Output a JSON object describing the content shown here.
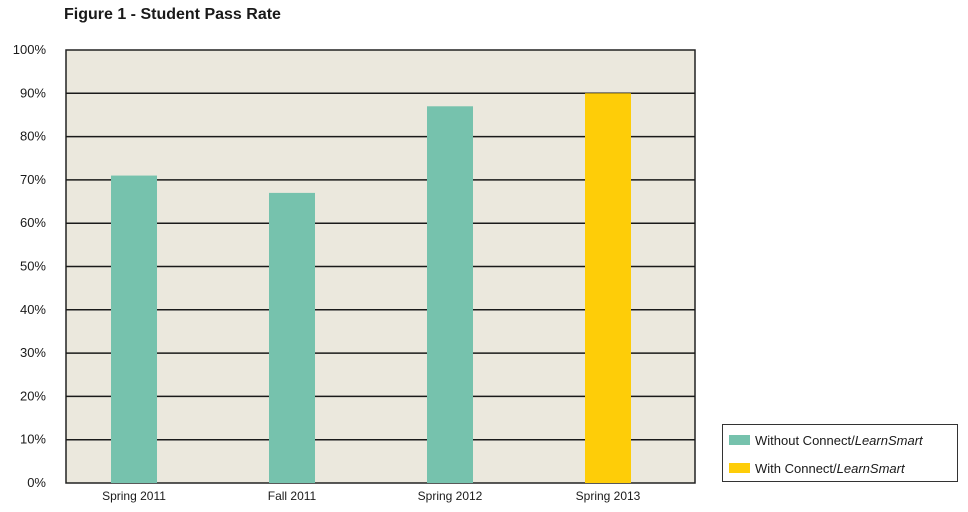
{
  "chart_data": {
    "type": "bar",
    "title": "Figure 1 - Student Pass Rate",
    "categories": [
      "Spring 2011",
      "Fall 2011",
      "Spring 2012",
      "Spring 2013"
    ],
    "values": [
      71,
      67,
      87,
      90
    ],
    "ylim": [
      0,
      100
    ],
    "yticks": [
      "0%",
      "10%",
      "20%",
      "30%",
      "40%",
      "50%",
      "60%",
      "70%",
      "80%",
      "90%",
      "100%"
    ],
    "grid": true,
    "series": [
      {
        "name": "Without Connect/LearnSmart",
        "name_plain": "Without Connect/",
        "name_italic": "LearnSmart",
        "color": "#76c2ad",
        "categories": [
          "Spring 2011",
          "Fall 2011",
          "Spring 2012"
        ]
      },
      {
        "name": "With Connect/LearnSmart",
        "name_plain": "With Connect/",
        "name_italic": "LearnSmart",
        "color": "#fecd08",
        "categories": [
          "Spring 2013"
        ]
      }
    ],
    "legend_position": "bottom-right",
    "plot_background": "#ebe8dd"
  }
}
